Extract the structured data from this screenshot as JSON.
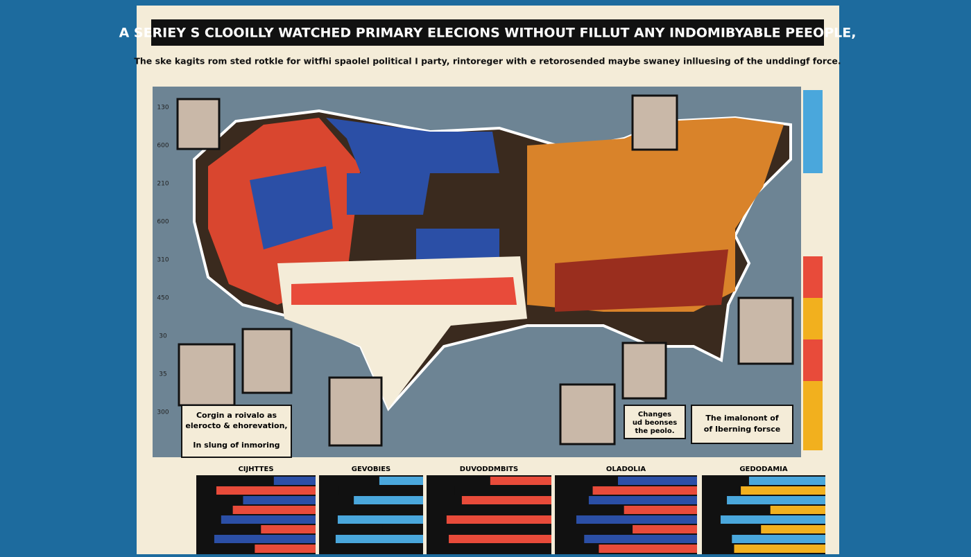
{
  "header": {
    "title": "A SERIEY S CLOOILLY WATCHED PRIMARY  ELECIONS WITHOUT FILLUT  ANY INDOMIBYABLE PEEOPLE,",
    "subtitle": "The ske kagits rom sted rotkle for witfhi spaolel political I party, rintoreger with e retorosended maybe swaney inlluesing of the unddingf force."
  },
  "left_axis_labels": [
    "130",
    "600",
    "210",
    "600",
    "310",
    "450",
    "30",
    "35",
    "300"
  ],
  "captions": [
    {
      "lines": [
        "Corgin a roivalo as",
        "elerocto & ehorevation,"
      ],
      "note": "In slung of inmoring"
    },
    {
      "lines": [
        "Changes",
        "ud beonses",
        "the peolo."
      ]
    },
    {
      "lines": [
        "The imalonont of",
        "of Iberning forsce"
      ]
    }
  ],
  "panels": [
    "CIJHTTES",
    "GEVOBIES",
    "DUVODDMBITS",
    "OLADOLIA",
    "GEDODAMIA"
  ]
}
